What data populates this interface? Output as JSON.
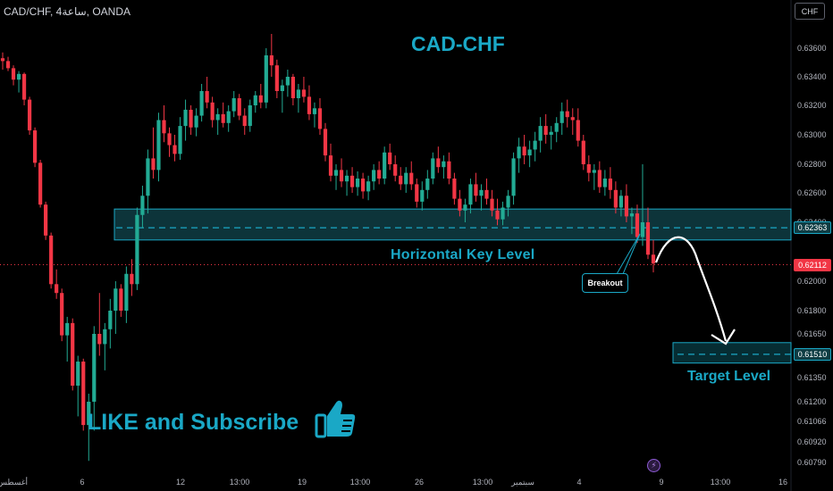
{
  "header": {
    "symbol_info": "CAD/CHF, 4ساعة, OANDA",
    "currency_button": "CHF"
  },
  "annotations": {
    "title": "CAD-CHF",
    "key_level_label": "Horizontal Key Level",
    "target_label": "Target Level",
    "breakout_label": "Breakout",
    "like_text": "LIKE and Subscribe"
  },
  "colors": {
    "background": "#000000",
    "bull": "#22ab94",
    "bear": "#f23645",
    "accent": "#1aa8c6",
    "zone_fill": "#0f3d44",
    "current_price_tag": "#f23645"
  },
  "icons": {
    "thumb": "thumbs-up-icon",
    "bolt": "lightning-icon"
  },
  "chart_data": {
    "type": "candlestick",
    "y_axis": {
      "ticks": [
        "0.63600",
        "0.63400",
        "0.63200",
        "0.63000",
        "0.62800",
        "0.62600",
        "0.62400",
        "0.62000",
        "0.61800",
        "0.61650",
        "0.61350",
        "0.61200",
        "0.61066",
        "0.60920",
        "0.60790"
      ],
      "range": [
        0.607,
        0.6375
      ]
    },
    "x_axis": {
      "ticks": [
        "أغسطس",
        "6",
        "12",
        "13:00",
        "19",
        "13:00",
        "26",
        "13:00",
        "سبتمبر",
        "4",
        "9",
        "13:00",
        "16"
      ]
    },
    "price_tags": {
      "key_level": "0.62363",
      "current": "0.62112",
      "target": "0.61510"
    },
    "zones": {
      "key_level": {
        "top": 0.6249,
        "bottom": 0.6228,
        "mid": 0.62363
      },
      "target": {
        "top": 0.6159,
        "bottom": 0.6145,
        "mid": 0.6151
      }
    },
    "current_price": 0.62112,
    "candles": [
      [
        0.6353,
        0.6357,
        0.6345,
        0.6351
      ],
      [
        0.6351,
        0.6354,
        0.6344,
        0.6346
      ],
      [
        0.6346,
        0.6348,
        0.6334,
        0.6338
      ],
      [
        0.6338,
        0.6344,
        0.6329,
        0.6342
      ],
      [
        0.6342,
        0.6343,
        0.632,
        0.6324
      ],
      [
        0.6324,
        0.6326,
        0.63,
        0.6303
      ],
      [
        0.6303,
        0.6305,
        0.6278,
        0.6281
      ],
      [
        0.6281,
        0.6283,
        0.625,
        0.6252
      ],
      [
        0.6252,
        0.6254,
        0.6228,
        0.6231
      ],
      [
        0.6231,
        0.6233,
        0.6195,
        0.6198
      ],
      [
        0.6198,
        0.6208,
        0.6188,
        0.6192
      ],
      [
        0.6192,
        0.6195,
        0.616,
        0.6164
      ],
      [
        0.6164,
        0.6176,
        0.6146,
        0.6172
      ],
      [
        0.6172,
        0.6175,
        0.6127,
        0.613
      ],
      [
        0.613,
        0.615,
        0.611,
        0.6146
      ],
      [
        0.6146,
        0.6148,
        0.61,
        0.6104
      ],
      [
        0.6104,
        0.6125,
        0.608,
        0.612
      ],
      [
        0.612,
        0.617,
        0.61,
        0.6165
      ],
      [
        0.6165,
        0.6192,
        0.615,
        0.6158
      ],
      [
        0.6158,
        0.6172,
        0.614,
        0.6168
      ],
      [
        0.6168,
        0.6188,
        0.6155,
        0.618
      ],
      [
        0.618,
        0.62,
        0.6165,
        0.6195
      ],
      [
        0.6195,
        0.6198,
        0.6176,
        0.618
      ],
      [
        0.618,
        0.621,
        0.6172,
        0.6205
      ],
      [
        0.6205,
        0.6215,
        0.619,
        0.6198
      ],
      [
        0.6198,
        0.625,
        0.6194,
        0.6245
      ],
      [
        0.6245,
        0.6265,
        0.6236,
        0.6258
      ],
      [
        0.6258,
        0.629,
        0.6246,
        0.6284
      ],
      [
        0.6284,
        0.6305,
        0.627,
        0.6276
      ],
      [
        0.6276,
        0.6315,
        0.6268,
        0.631
      ],
      [
        0.631,
        0.632,
        0.6295,
        0.6301
      ],
      [
        0.6301,
        0.6305,
        0.6285,
        0.6293
      ],
      [
        0.6293,
        0.63,
        0.6282,
        0.6287
      ],
      [
        0.6287,
        0.6312,
        0.6283,
        0.6306
      ],
      [
        0.6306,
        0.6324,
        0.6296,
        0.6317
      ],
      [
        0.6317,
        0.632,
        0.63,
        0.6305
      ],
      [
        0.6305,
        0.6318,
        0.6299,
        0.6313
      ],
      [
        0.6313,
        0.6335,
        0.6309,
        0.633
      ],
      [
        0.633,
        0.634,
        0.6318,
        0.6322
      ],
      [
        0.6322,
        0.6326,
        0.6305,
        0.631
      ],
      [
        0.631,
        0.6318,
        0.63,
        0.6314
      ],
      [
        0.6314,
        0.6322,
        0.6305,
        0.6308
      ],
      [
        0.6308,
        0.632,
        0.6302,
        0.6316
      ],
      [
        0.6316,
        0.633,
        0.6312,
        0.6325
      ],
      [
        0.6325,
        0.6328,
        0.631,
        0.6313
      ],
      [
        0.6313,
        0.6318,
        0.63,
        0.6306
      ],
      [
        0.6306,
        0.6324,
        0.6302,
        0.632
      ],
      [
        0.632,
        0.633,
        0.6315,
        0.6327
      ],
      [
        0.6327,
        0.6335,
        0.6318,
        0.6322
      ],
      [
        0.6322,
        0.636,
        0.6318,
        0.6355
      ],
      [
        0.6355,
        0.637,
        0.634,
        0.6348
      ],
      [
        0.6348,
        0.6352,
        0.6325,
        0.633
      ],
      [
        0.633,
        0.6338,
        0.6315,
        0.6334
      ],
      [
        0.6334,
        0.6345,
        0.6326,
        0.634
      ],
      [
        0.634,
        0.6342,
        0.632,
        0.6325
      ],
      [
        0.6325,
        0.6335,
        0.6315,
        0.6331
      ],
      [
        0.6331,
        0.634,
        0.6322,
        0.6326
      ],
      [
        0.6326,
        0.6334,
        0.631,
        0.6314
      ],
      [
        0.6314,
        0.6322,
        0.6305,
        0.6318
      ],
      [
        0.6318,
        0.6325,
        0.63,
        0.6304
      ],
      [
        0.6304,
        0.6308,
        0.6282,
        0.6286
      ],
      [
        0.6286,
        0.6294,
        0.6268,
        0.6272
      ],
      [
        0.6272,
        0.628,
        0.6262,
        0.6276
      ],
      [
        0.6276,
        0.6284,
        0.6264,
        0.6268
      ],
      [
        0.6268,
        0.6276,
        0.6258,
        0.6272
      ],
      [
        0.6272,
        0.6278,
        0.626,
        0.6264
      ],
      [
        0.6264,
        0.6275,
        0.6258,
        0.627
      ],
      [
        0.627,
        0.6274,
        0.6256,
        0.6261
      ],
      [
        0.6261,
        0.6272,
        0.6255,
        0.6268
      ],
      [
        0.6268,
        0.628,
        0.6262,
        0.6276
      ],
      [
        0.6276,
        0.6282,
        0.6266,
        0.627
      ],
      [
        0.627,
        0.6292,
        0.6266,
        0.6288
      ],
      [
        0.6288,
        0.6294,
        0.6276,
        0.628
      ],
      [
        0.628,
        0.6286,
        0.6268,
        0.6272
      ],
      [
        0.6272,
        0.6278,
        0.6262,
        0.6266
      ],
      [
        0.6266,
        0.6278,
        0.626,
        0.6274
      ],
      [
        0.6274,
        0.6282,
        0.6262,
        0.6266
      ],
      [
        0.6266,
        0.627,
        0.625,
        0.6254
      ],
      [
        0.6254,
        0.6268,
        0.6248,
        0.6262
      ],
      [
        0.6262,
        0.6276,
        0.6256,
        0.627
      ],
      [
        0.627,
        0.6288,
        0.6266,
        0.6284
      ],
      [
        0.6284,
        0.6292,
        0.6274,
        0.6278
      ],
      [
        0.6278,
        0.6286,
        0.627,
        0.6282
      ],
      [
        0.6282,
        0.6288,
        0.6266,
        0.627
      ],
      [
        0.627,
        0.6274,
        0.6252,
        0.6256
      ],
      [
        0.6256,
        0.6262,
        0.6244,
        0.6248
      ],
      [
        0.6248,
        0.6256,
        0.624,
        0.6252
      ],
      [
        0.6252,
        0.627,
        0.6246,
        0.6266
      ],
      [
        0.6266,
        0.6274,
        0.6254,
        0.6258
      ],
      [
        0.6258,
        0.6266,
        0.6248,
        0.6262
      ],
      [
        0.6262,
        0.627,
        0.6252,
        0.6256
      ],
      [
        0.6256,
        0.6262,
        0.6244,
        0.6248
      ],
      [
        0.6248,
        0.6256,
        0.6238,
        0.6242
      ],
      [
        0.6242,
        0.6254,
        0.6238,
        0.625
      ],
      [
        0.625,
        0.6262,
        0.6244,
        0.6258
      ],
      [
        0.6258,
        0.6288,
        0.6252,
        0.6284
      ],
      [
        0.6284,
        0.6298,
        0.6274,
        0.6292
      ],
      [
        0.6292,
        0.63,
        0.628,
        0.6286
      ],
      [
        0.6286,
        0.6296,
        0.6278,
        0.629
      ],
      [
        0.629,
        0.6302,
        0.6282,
        0.6296
      ],
      [
        0.6296,
        0.6312,
        0.6288,
        0.6306
      ],
      [
        0.6306,
        0.6314,
        0.6294,
        0.63
      ],
      [
        0.63,
        0.6306,
        0.629,
        0.6302
      ],
      [
        0.6302,
        0.6312,
        0.6295,
        0.6308
      ],
      [
        0.6308,
        0.6322,
        0.63,
        0.6316
      ],
      [
        0.6316,
        0.6324,
        0.6305,
        0.6312
      ],
      [
        0.6312,
        0.6318,
        0.63,
        0.631
      ],
      [
        0.631,
        0.6318,
        0.6292,
        0.6296
      ],
      [
        0.6296,
        0.63,
        0.6276,
        0.628
      ],
      [
        0.628,
        0.6286,
        0.6268,
        0.6274
      ],
      [
        0.6274,
        0.628,
        0.6262,
        0.6276
      ],
      [
        0.6276,
        0.6282,
        0.626,
        0.6264
      ],
      [
        0.6264,
        0.6276,
        0.6258,
        0.627
      ],
      [
        0.627,
        0.6278,
        0.6256,
        0.6262
      ],
      [
        0.6262,
        0.6268,
        0.6246,
        0.625
      ],
      [
        0.625,
        0.6262,
        0.6244,
        0.6258
      ],
      [
        0.6258,
        0.6266,
        0.624,
        0.6244
      ],
      [
        0.6244,
        0.625,
        0.6232,
        0.6246
      ],
      [
        0.6246,
        0.6252,
        0.6226,
        0.623
      ],
      [
        0.623,
        0.628,
        0.6224,
        0.624
      ],
      [
        0.624,
        0.625,
        0.6215,
        0.6218
      ],
      [
        0.6218,
        0.6228,
        0.6206,
        0.6212
      ]
    ]
  }
}
